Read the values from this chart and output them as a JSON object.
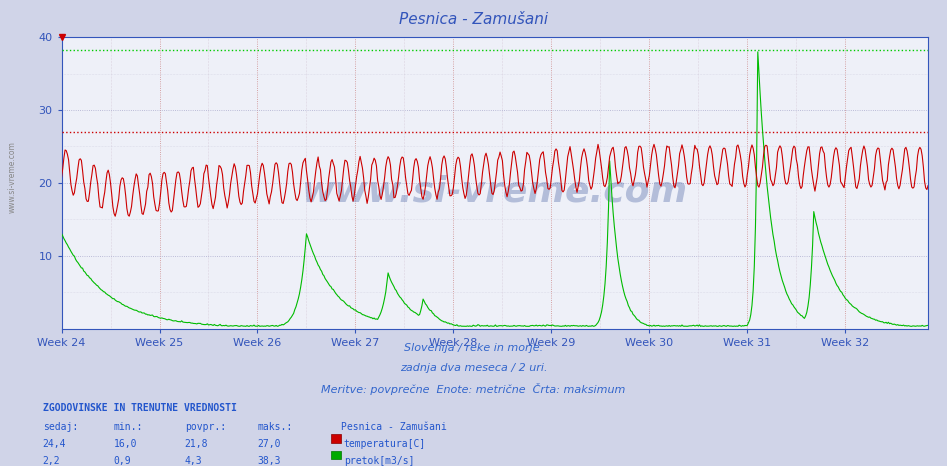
{
  "title": "Pesnica - Zamušani",
  "subtitle1": "Slovenija / reke in morje.",
  "subtitle2": "zadnja dva meseca / 2 uri.",
  "subtitle3": "Meritve: povprečne  Enote: metrične  Črta: maksimum",
  "week_labels": [
    "Week 24",
    "Week 25",
    "Week 26",
    "Week 27",
    "Week 28",
    "Week 29",
    "Week 30",
    "Week 31",
    "Week 32"
  ],
  "ylim": [
    0,
    40
  ],
  "yticks": [
    10,
    20,
    30,
    40
  ],
  "fig_bg_color": "#d0d4e8",
  "plot_bg_color": "#eef0f8",
  "title_color": "#3355bb",
  "tick_color": "#3355bb",
  "spine_color": "#3355bb",
  "temp_color": "#cc0000",
  "flow_color": "#00bb00",
  "hline_temp_max": 27.0,
  "hline_flow_max": 38.3,
  "grid_h_color": "#ccccdd",
  "grid_v_color": "#ddaabb",
  "temp_current": "24,4",
  "temp_min": "16,0",
  "temp_avg": "21,8",
  "temp_max": "27,0",
  "flow_current": "2,2",
  "flow_min": "0,9",
  "flow_avg": "4,3",
  "flow_max": "38,3",
  "station": "Pesnica - Zamušani",
  "legend_temp": "temperatura[C]",
  "legend_flow": "pretok[m3/s]",
  "table_header": "ZGODOVINSKE IN TRENUTNE VREDNOSTI",
  "col_headers": [
    "sedaj:",
    "min.:",
    "povpr.:",
    "maks.:"
  ],
  "watermark": "www.si-vreme.com",
  "num_points": 744,
  "week_tick_positions": [
    0,
    84,
    168,
    252,
    336,
    420,
    504,
    588,
    672
  ]
}
